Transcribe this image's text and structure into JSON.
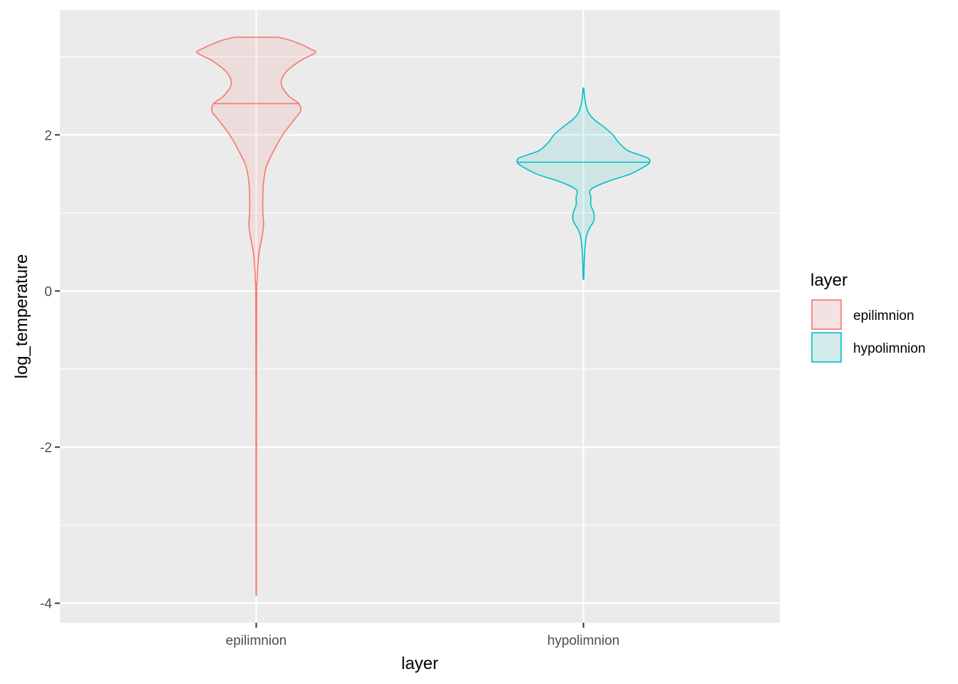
{
  "chart_data": {
    "type": "violin",
    "xlabel": "layer",
    "ylabel": "log_temperature",
    "categories": [
      "epilimnion",
      "hypolimnion"
    ],
    "ylim": [
      -4.25,
      3.6
    ],
    "yticks": [
      -4,
      -2,
      0,
      2
    ],
    "ytick_labels": [
      "-4",
      "-2",
      "0",
      "2"
    ],
    "grid": true,
    "legend": {
      "title": "layer",
      "position": "right",
      "entries": [
        "epilimnion",
        "hypolimnion"
      ]
    },
    "colors": {
      "epilimnion": "#F8766D",
      "hypolimnion": "#00BFC4",
      "panel_background": "#EBEBEB",
      "grid": "#FFFFFF"
    },
    "series": [
      {
        "name": "epilimnion",
        "min": -3.9,
        "max": 3.25,
        "median": 2.4,
        "density_profile": [
          [
            3.25,
            0.15
          ],
          [
            3.2,
            0.25
          ],
          [
            3.1,
            0.37
          ],
          [
            3.05,
            0.4
          ],
          [
            2.95,
            0.3
          ],
          [
            2.8,
            0.2
          ],
          [
            2.65,
            0.17
          ],
          [
            2.5,
            0.22
          ],
          [
            2.4,
            0.29
          ],
          [
            2.3,
            0.3
          ],
          [
            2.2,
            0.26
          ],
          [
            2.0,
            0.18
          ],
          [
            1.8,
            0.12
          ],
          [
            1.6,
            0.07
          ],
          [
            1.4,
            0.05
          ],
          [
            1.2,
            0.045
          ],
          [
            1.0,
            0.045
          ],
          [
            0.85,
            0.05
          ],
          [
            0.7,
            0.04
          ],
          [
            0.5,
            0.02
          ],
          [
            0.3,
            0.01
          ],
          [
            0.1,
            0.005
          ],
          [
            0.0,
            0.003
          ],
          [
            -1.0,
            0.002
          ],
          [
            -3.9,
            0.001
          ]
        ]
      },
      {
        "name": "hypolimnion",
        "min": 0.15,
        "max": 2.6,
        "median": 1.65,
        "density_profile": [
          [
            2.6,
            0.002
          ],
          [
            2.45,
            0.01
          ],
          [
            2.3,
            0.03
          ],
          [
            2.2,
            0.07
          ],
          [
            2.1,
            0.14
          ],
          [
            2.0,
            0.2
          ],
          [
            1.9,
            0.24
          ],
          [
            1.8,
            0.3
          ],
          [
            1.75,
            0.37
          ],
          [
            1.7,
            0.44
          ],
          [
            1.65,
            0.45
          ],
          [
            1.6,
            0.42
          ],
          [
            1.5,
            0.32
          ],
          [
            1.4,
            0.16
          ],
          [
            1.3,
            0.05
          ],
          [
            1.2,
            0.05
          ],
          [
            1.1,
            0.05
          ],
          [
            1.0,
            0.07
          ],
          [
            0.9,
            0.07
          ],
          [
            0.8,
            0.04
          ],
          [
            0.7,
            0.02
          ],
          [
            0.5,
            0.008
          ],
          [
            0.3,
            0.004
          ],
          [
            0.15,
            0.002
          ]
        ]
      }
    ]
  }
}
